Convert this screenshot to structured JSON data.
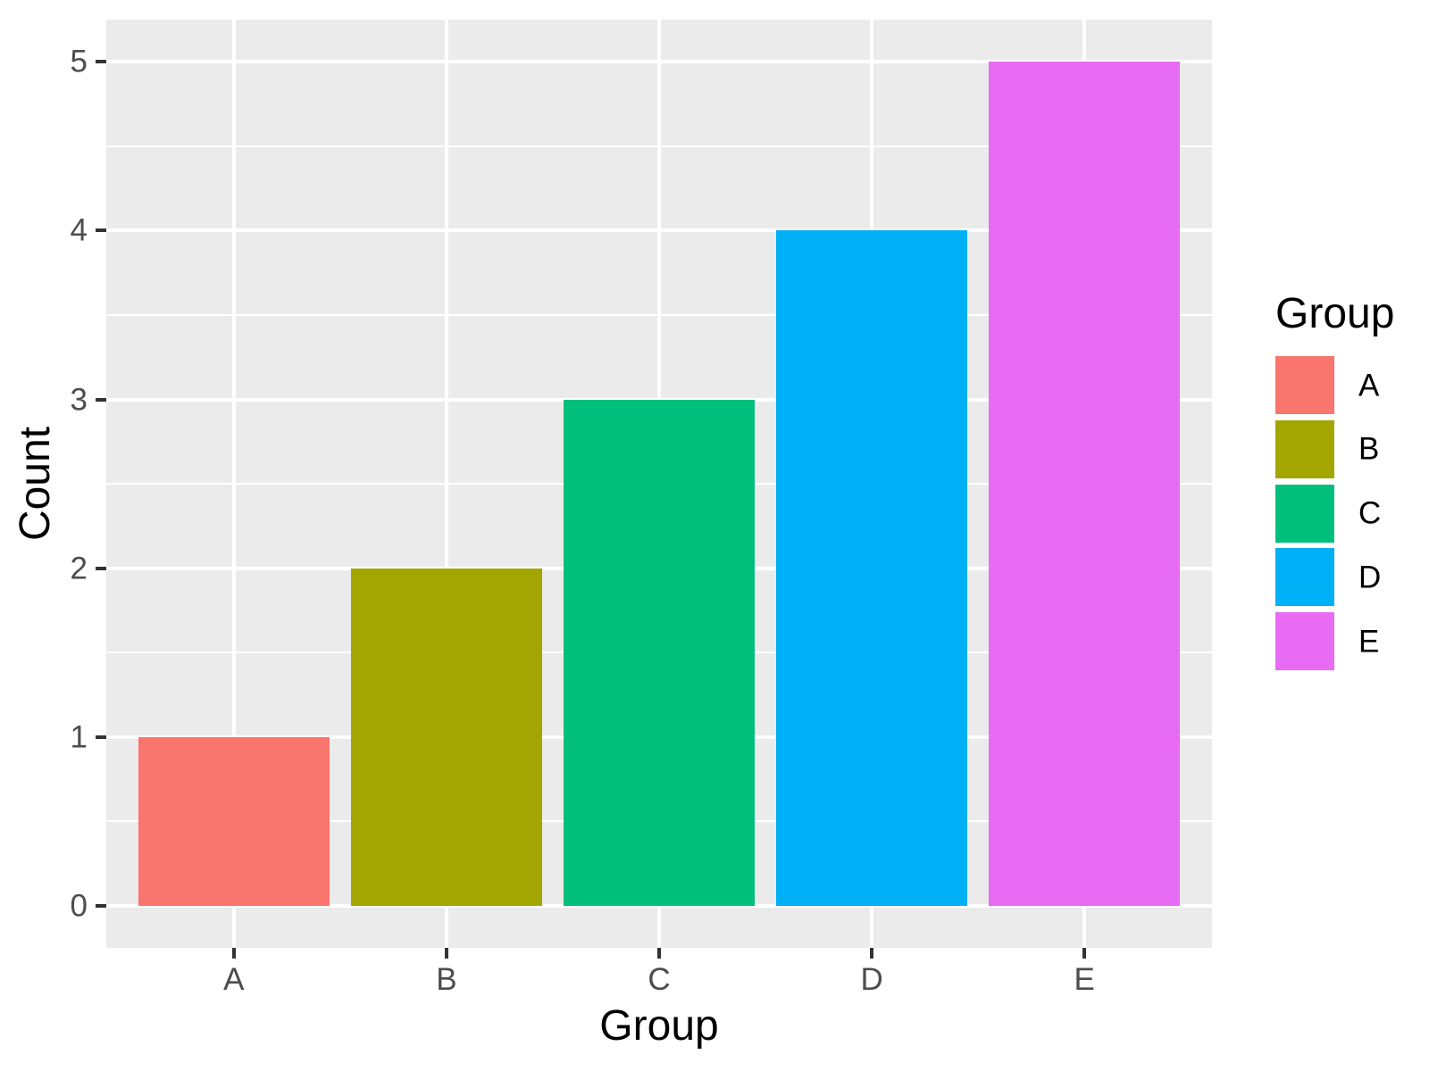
{
  "chart_data": {
    "type": "bar",
    "title": "",
    "xlabel": "Group",
    "ylabel": "Count",
    "categories": [
      "A",
      "B",
      "C",
      "D",
      "E"
    ],
    "values": [
      1,
      2,
      3,
      4,
      5
    ],
    "bar_colors": [
      "#F8766D",
      "#A3A500",
      "#00BF7D",
      "#00B0F6",
      "#E76BF3"
    ],
    "ylim": [
      0,
      5
    ],
    "yticks": [
      0,
      1,
      2,
      3,
      4,
      5
    ],
    "grid": "major and minor horizontal, major vertical at category centers",
    "legend_position": "right",
    "legend": {
      "title": "Group",
      "entries": [
        {
          "label": "A",
          "color": "#F8766D"
        },
        {
          "label": "B",
          "color": "#A3A500"
        },
        {
          "label": "C",
          "color": "#00BF7D"
        },
        {
          "label": "D",
          "color": "#00B0F6"
        },
        {
          "label": "E",
          "color": "#E76BF3"
        }
      ]
    },
    "style": {
      "panel_bg": "#EBEBEB",
      "grid_color": "#FFFFFF",
      "tick_color": "#333333",
      "tick_label_color": "#4D4D4D",
      "title_color": "#000000",
      "bar_width_fraction": 0.9
    }
  }
}
